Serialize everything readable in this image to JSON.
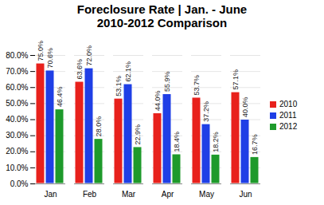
{
  "chart_data": {
    "type": "bar",
    "title": "Foreclosure Rate | Jan. - June",
    "subtitle": "2010-2012 Comparison",
    "categories": [
      "Jan",
      "Feb",
      "Mar",
      "Apr",
      "May",
      "Jun"
    ],
    "series": [
      {
        "name": "2010",
        "color": "#e8211c",
        "values": [
          75.0,
          63.6,
          53.1,
          44.0,
          53.7,
          57.1
        ],
        "value_labels": [
          "75.0%",
          "63.6%",
          "53.1%",
          "44.0%",
          "53.7%",
          "57.1%"
        ]
      },
      {
        "name": "2011",
        "color": "#1f3fe6",
        "values": [
          70.6,
          72.0,
          62.1,
          55.9,
          37.2,
          40.0
        ],
        "value_labels": [
          "70.6%",
          "72.0%",
          "62.1%",
          "55.9%",
          "37.2%",
          "40.0%"
        ]
      },
      {
        "name": "2012",
        "color": "#1e9a2b",
        "values": [
          46.4,
          28.0,
          22.9,
          18.4,
          18.2,
          16.7
        ],
        "value_labels": [
          "46.4%",
          "28.0%",
          "22.9%",
          "18.4%",
          "18.2%",
          "16.7%"
        ]
      }
    ],
    "ylim": [
      0,
      80
    ],
    "yticks": [
      {
        "value": 0,
        "label": "0.0%"
      },
      {
        "value": 10,
        "label": "10.0%"
      },
      {
        "value": 20,
        "label": "20.0%"
      },
      {
        "value": 30,
        "label": "30.0%"
      },
      {
        "value": 40,
        "label": "40.0%"
      },
      {
        "value": 50,
        "label": "50.0%"
      },
      {
        "value": 60,
        "label": "60.0%"
      },
      {
        "value": 70,
        "label": "70.0%"
      },
      {
        "value": 80,
        "label": "80.0%"
      }
    ],
    "grid": true,
    "legend": "right",
    "data_labels": true
  }
}
